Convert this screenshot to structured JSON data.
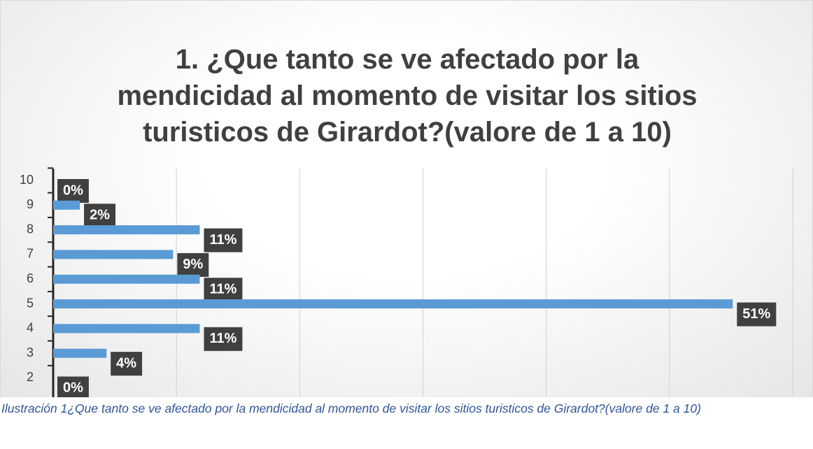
{
  "chart_data": {
    "type": "bar",
    "orientation": "horizontal",
    "title": "1. ¿Que tanto se ve afectado por la mendicidad al momento de visitar los sitios turisticos de Girardot?(valore de 1 a 10)",
    "categories": [
      "10",
      "9",
      "8",
      "7",
      "6",
      "5",
      "4",
      "3",
      "2"
    ],
    "values": [
      0,
      2,
      11,
      9,
      11,
      51,
      11,
      4,
      0
    ],
    "value_labels": [
      "0%",
      "2%",
      "11%",
      "9%",
      "11%",
      "51%",
      "11%",
      "4%",
      "0%"
    ],
    "color": "#5b9bd5",
    "xlim": [
      0,
      55.5
    ],
    "xticks": [
      0,
      9.25,
      18.5,
      27.75,
      37,
      46.25,
      55.5
    ],
    "grid": true
  },
  "caption": "Ilustración 1¿Que tanto se ve afectado por la mendicidad al momento de visitar los sitios turisticos de Girardot?(valore de 1 a 10)"
}
